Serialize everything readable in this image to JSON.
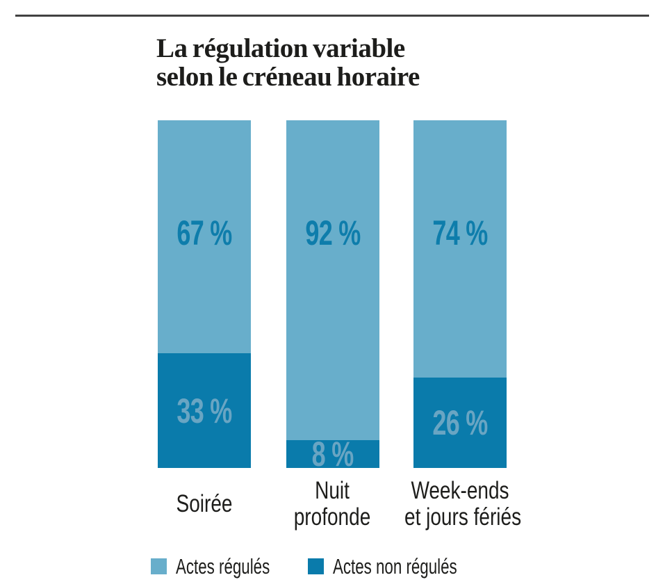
{
  "page": {
    "background": "#ffffff",
    "rule_color": "#414141"
  },
  "chart_data": {
    "type": "bar",
    "stacked": true,
    "orientation": "vertical",
    "title": "La régulation variable selon le créneau horaire",
    "title_lines": [
      "La régulation variable",
      "selon le créneau horaire"
    ],
    "categories": [
      "Soirée",
      "Nuit profonde",
      "Week-ends et jours fériés"
    ],
    "categories_lines": [
      [
        "Soirée"
      ],
      [
        "Nuit",
        "profonde"
      ],
      [
        "Week-ends",
        "et jours fériés"
      ]
    ],
    "series": [
      {
        "name": "Actes régulés",
        "color": "#68aecb",
        "values": [
          67,
          92,
          74
        ]
      },
      {
        "name": "Actes non régulés",
        "color": "#0a7bab",
        "values": [
          33,
          8,
          26
        ]
      }
    ],
    "value_labels": {
      "actes_regules": [
        "67 %",
        "92 %",
        "74 %"
      ],
      "actes_non_regules": [
        "33 %",
        "8 %",
        "26 %"
      ]
    },
    "unit": "%",
    "ylim": [
      0,
      100
    ],
    "grid": false,
    "axes_visible": false,
    "legend_position": "bottom",
    "label_colors": {
      "on_light": "#0e7dab",
      "on_dark": "#69a5c3"
    }
  }
}
